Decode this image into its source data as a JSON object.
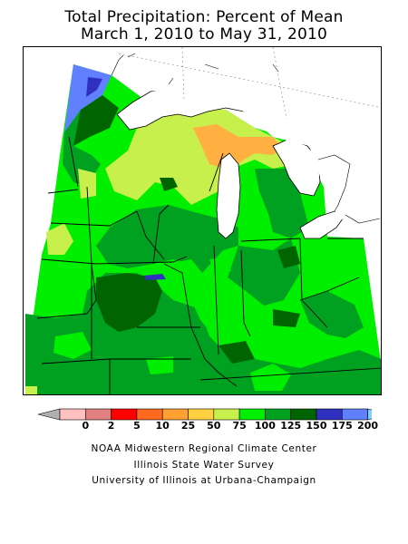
{
  "title": {
    "line1": "Total Precipitation: Percent of Mean",
    "line2": "March 1, 2010 to May 31, 2010"
  },
  "legend": {
    "ticks": [
      "0",
      "2",
      "5",
      "10",
      "25",
      "50",
      "75",
      "100",
      "125",
      "150",
      "175",
      "200"
    ],
    "colors": [
      "#ffc0c0",
      "#e08080",
      "#ff0000",
      "#ff6a20",
      "#ffa030",
      "#ffd040",
      "#c8f04c",
      "#00ee00",
      "#00a020",
      "#006400",
      "#3030c0",
      "#6080ff"
    ],
    "under_color": "#b0b0b0",
    "over_color": "#80d0ff"
  },
  "credits": {
    "line1": "NOAA Midwestern Regional Climate Center",
    "line2": "Illinois State Water Survey",
    "line3": "University of Illinois at Urbana-Champaign"
  },
  "map": {
    "region": "Midwest",
    "lake_color": "#ffffff",
    "border_color": "#000000"
  }
}
